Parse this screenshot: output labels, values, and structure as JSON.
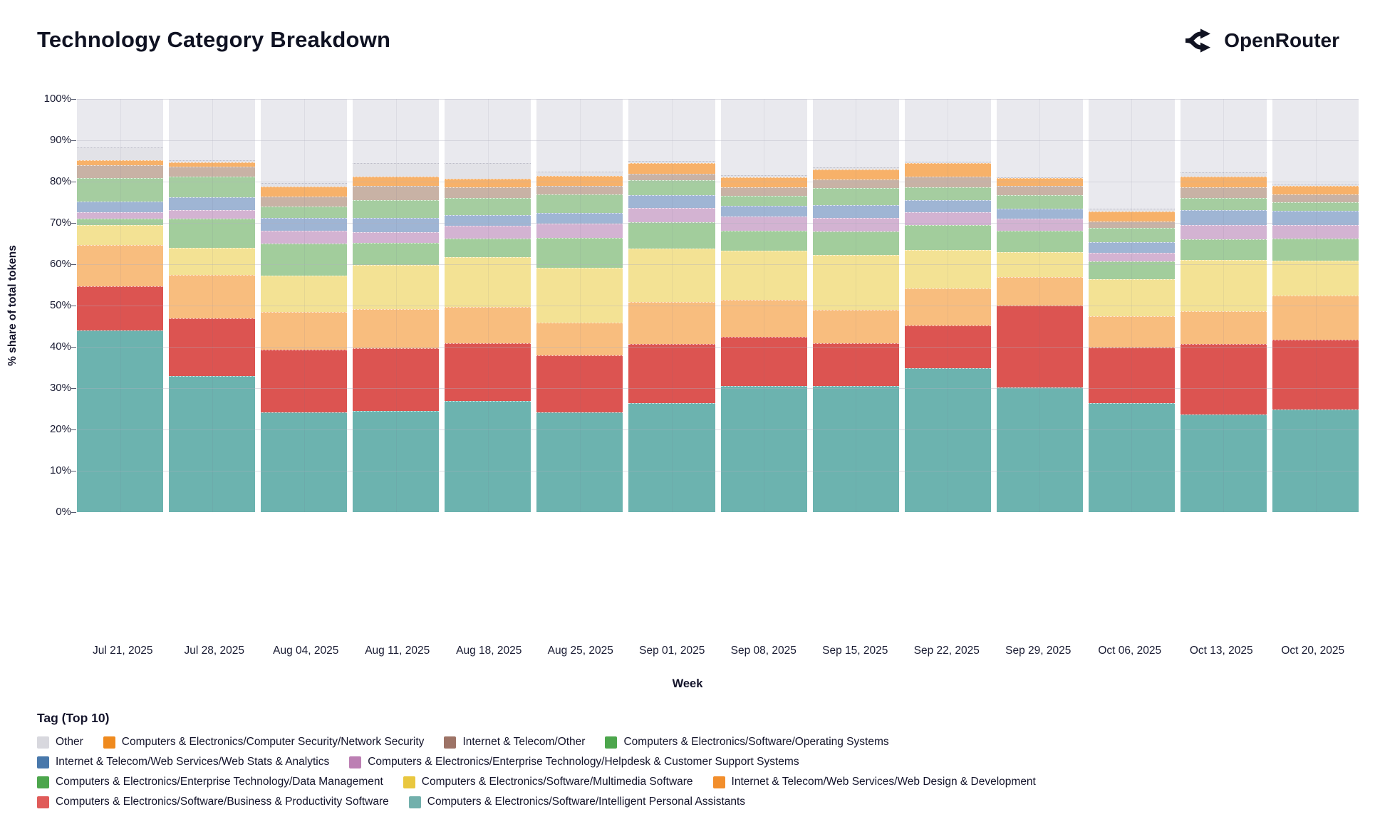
{
  "header": {
    "title": "Technology Category Breakdown",
    "brand": "OpenRouter"
  },
  "chart_data": {
    "type": "bar",
    "stacked": true,
    "title": "Technology Category Breakdown",
    "xlabel": "Week",
    "ylabel": "% share of total tokens",
    "ylim": [
      0,
      100
    ],
    "yticks": [
      "0%",
      "10%",
      "20%",
      "30%",
      "40%",
      "50%",
      "60%",
      "70%",
      "80%",
      "90%",
      "100%"
    ],
    "grid": true,
    "legend_title": "Tag (Top 10)",
    "categories": [
      "Jul 21, 2025",
      "Jul 28, 2025",
      "Aug 04, 2025",
      "Aug 11, 2025",
      "Aug 18, 2025",
      "Aug 25, 2025",
      "Sep 01, 2025",
      "Sep 08, 2025",
      "Sep 15, 2025",
      "Sep 22, 2025",
      "Sep 29, 2025",
      "Oct 06, 2025",
      "Oct 13, 2025",
      "Oct 20, 2025"
    ],
    "series": [
      {
        "name": "Computers & Electronics/Software/Intelligent Personal Assistants",
        "legend_color": "#72b0ac",
        "bar_color": "#6cb3af",
        "texture": "none",
        "values": [
          44.0,
          33.0,
          24.1,
          24.4,
          26.9,
          24.2,
          26.4,
          30.6,
          30.6,
          34.9,
          30.1,
          26.4,
          23.6,
          24.9
        ]
      },
      {
        "name": "Computers & Electronics/Software/Business & Productivity Software",
        "legend_color": "#e05b59",
        "bar_color": "#dc5451",
        "texture": "none",
        "values": [
          10.7,
          13.9,
          15.2,
          15.2,
          13.9,
          13.8,
          14.3,
          11.8,
          10.3,
          10.3,
          19.9,
          13.4,
          17.1,
          16.9
        ]
      },
      {
        "name": "Internet & Telecom/Web Services/Web Design & Development",
        "legend_color": "#f28e2c",
        "bar_color": "#f8bd7e",
        "texture": "none",
        "values": [
          10.0,
          10.6,
          9.2,
          9.5,
          8.9,
          7.8,
          10.1,
          8.9,
          8.1,
          8.9,
          6.9,
          7.6,
          7.9,
          10.6
        ]
      },
      {
        "name": "Computers & Electronics/Software/Multimedia Software",
        "legend_color": "#e9c73f",
        "bar_color": "#f3e294",
        "texture": "none",
        "values": [
          4.8,
          6.4,
          8.7,
          10.7,
          12.1,
          13.4,
          13.0,
          11.9,
          13.3,
          9.3,
          6.1,
          8.9,
          12.4,
          8.4
        ]
      },
      {
        "name": "Computers & Electronics/Enterprise Technology/Data Management",
        "legend_color": "#4ca64c",
        "bar_color": "#a2cd9c",
        "texture": "none",
        "values": [
          1.5,
          7.1,
          7.8,
          5.4,
          4.4,
          7.1,
          6.4,
          4.9,
          5.6,
          6.1,
          5.1,
          4.4,
          5.1,
          5.4
        ]
      },
      {
        "name": "Computers & Electronics/Enterprise Technology/Helpdesk & Customer Support Systems",
        "legend_color": "#bc7fb3",
        "bar_color": "#d3b3d2",
        "texture": "dots",
        "values": [
          1.6,
          2.1,
          3.1,
          2.6,
          3.1,
          3.6,
          3.4,
          3.4,
          3.4,
          3.1,
          2.9,
          2.1,
          3.4,
          3.3
        ]
      },
      {
        "name": "Internet & Telecom/Web Services/Web Stats & Analytics",
        "legend_color": "#4878ab",
        "bar_color": "#9fb5d4",
        "texture": "none",
        "values": [
          2.6,
          3.1,
          3.2,
          3.4,
          2.6,
          2.6,
          3.1,
          2.6,
          3.1,
          2.9,
          2.4,
          2.6,
          3.6,
          3.4
        ]
      },
      {
        "name": "Computers & Electronics/Software/Operating Systems",
        "legend_color": "#4ca64c",
        "bar_color": "#a5cda0",
        "texture": "none",
        "values": [
          5.6,
          5.1,
          2.7,
          4.4,
          4.1,
          4.4,
          3.6,
          2.4,
          4.1,
          3.1,
          3.4,
          3.4,
          2.9,
          2.1
        ]
      },
      {
        "name": "Internet & Telecom/Other",
        "legend_color": "#9d7366",
        "bar_color": "#c8b2a5",
        "texture": "legend-speckle",
        "values": [
          3.2,
          2.4,
          2.4,
          3.4,
          2.6,
          2.1,
          1.6,
          2.1,
          2.1,
          2.6,
          2.1,
          1.6,
          2.6,
          1.9
        ]
      },
      {
        "name": "Computers & Electronics/Computer Security/Network Security",
        "legend_color": "#ef8a1e",
        "bar_color": "#f7b169",
        "texture": "none",
        "values": [
          1.2,
          0.9,
          2.4,
          2.2,
          2.1,
          2.4,
          2.6,
          2.4,
          2.4,
          3.3,
          1.9,
          2.3,
          2.6,
          2.1
        ]
      },
      {
        "name": "Other",
        "legend_color": "#d8d8de",
        "bar_color": "#e2e2e7",
        "texture": "ghost",
        "values": [
          3.1,
          0.6,
          0.8,
          3.3,
          3.8,
          1.1,
          0.6,
          0.5,
          0.4,
          0.4,
          0.2,
          0.8,
          1.1,
          0.5
        ]
      }
    ],
    "legend_display_order": "reverse_of_stack",
    "legend_position": "bottom"
  }
}
